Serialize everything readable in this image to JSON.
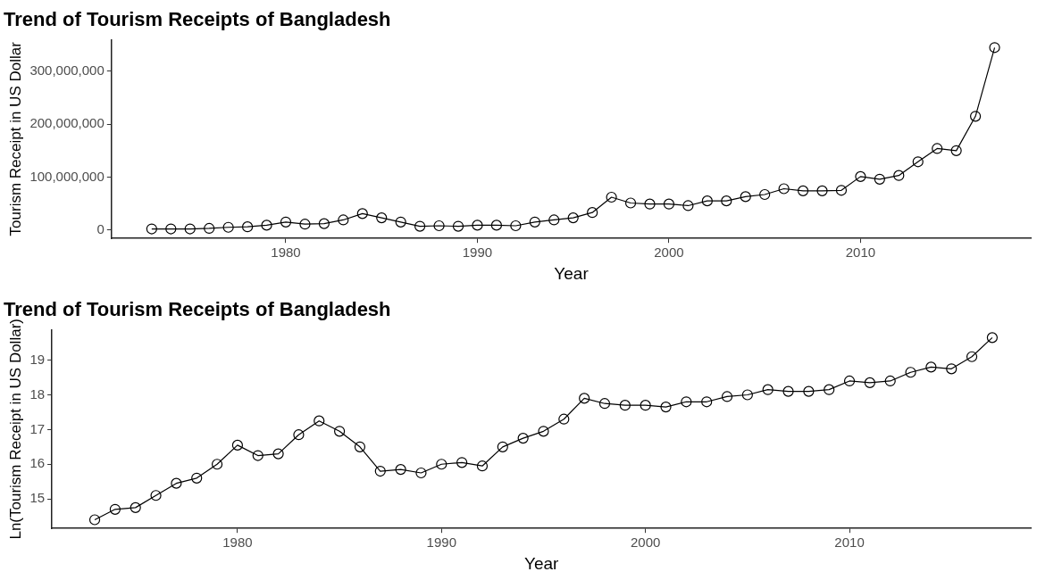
{
  "chart_data": [
    {
      "type": "line",
      "title": "Trend of Tourism Receipts of Bangladesh",
      "xlabel": "Year",
      "ylabel": "Tourism Receipt in US Dollar",
      "color": "#000000",
      "marker": "circle",
      "grid": false,
      "x": [
        1973,
        1974,
        1975,
        1976,
        1977,
        1978,
        1979,
        1980,
        1981,
        1982,
        1983,
        1984,
        1985,
        1986,
        1987,
        1988,
        1989,
        1990,
        1991,
        1992,
        1993,
        1994,
        1995,
        1996,
        1997,
        1998,
        1999,
        2000,
        2001,
        2002,
        2003,
        2004,
        2005,
        2006,
        2007,
        2008,
        2009,
        2010,
        2011,
        2012,
        2013,
        2014,
        2015,
        2016,
        2017
      ],
      "values": [
        2000000,
        2000000,
        2000000,
        3000000,
        5000000,
        6000000,
        9000000,
        15000000,
        11000000,
        12000000,
        19000000,
        31000000,
        23000000,
        15000000,
        7000000,
        8000000,
        7000000,
        9000000,
        9000000,
        8000000,
        15000000,
        19000000,
        23000000,
        33000000,
        62000000,
        51000000,
        49000000,
        49000000,
        46000000,
        55000000,
        55000000,
        63000000,
        67000000,
        78000000,
        74000000,
        74000000,
        75000000,
        101000000,
        96000000,
        103000000,
        129000000,
        154000000,
        150000000,
        215000000,
        345000000
      ],
      "xlim": [
        1970.9,
        2018.9
      ],
      "xticks": [
        1980,
        1990,
        2000,
        2010
      ],
      "ylim": [
        -16000000,
        360000000
      ],
      "yticks": [
        {
          "value": 0,
          "label": "0"
        },
        {
          "value": 100000000,
          "label": "100,000,000"
        },
        {
          "value": 200000000,
          "label": "200,000,000"
        },
        {
          "value": 300000000,
          "label": "300,000,000"
        }
      ]
    },
    {
      "type": "line",
      "title": "Trend of Tourism Receipts of Bangladesh",
      "xlabel": "Year",
      "ylabel": "Ln(Tourism Receipt in US Dollar)",
      "color": "#000000",
      "marker": "circle",
      "grid": false,
      "x": [
        1973,
        1974,
        1975,
        1976,
        1977,
        1978,
        1979,
        1980,
        1981,
        1982,
        1983,
        1984,
        1985,
        1986,
        1987,
        1988,
        1989,
        1990,
        1991,
        1992,
        1993,
        1994,
        1995,
        1996,
        1997,
        1998,
        1999,
        2000,
        2001,
        2002,
        2003,
        2004,
        2005,
        2006,
        2007,
        2008,
        2009,
        2010,
        2011,
        2012,
        2013,
        2014,
        2015,
        2016,
        2017
      ],
      "values": [
        14.4,
        14.7,
        14.75,
        15.1,
        15.45,
        15.6,
        16.0,
        16.55,
        16.25,
        16.3,
        16.85,
        17.25,
        16.95,
        16.5,
        15.8,
        15.85,
        15.75,
        16.0,
        16.05,
        15.95,
        16.5,
        16.75,
        16.95,
        17.3,
        17.9,
        17.75,
        17.7,
        17.7,
        17.65,
        17.8,
        17.8,
        17.95,
        18.0,
        18.15,
        18.1,
        18.1,
        18.15,
        18.4,
        18.35,
        18.4,
        18.65,
        18.8,
        18.75,
        19.1,
        19.65
      ],
      "xlim": [
        1970.9,
        2018.9
      ],
      "xticks": [
        1980,
        1990,
        2000,
        2010
      ],
      "ylim": [
        14.15,
        19.88
      ],
      "yticks": [
        15,
        16,
        17,
        18,
        19
      ]
    }
  ]
}
